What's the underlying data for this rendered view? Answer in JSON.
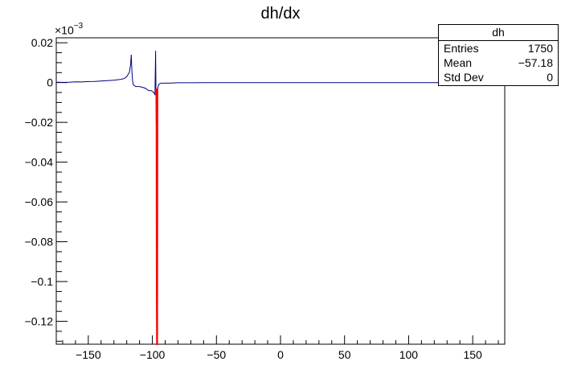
{
  "chart_data": {
    "type": "line",
    "title": "dh/dx",
    "xlabel": "",
    "ylabel": "",
    "xlim": [
      -175,
      175
    ],
    "ylim": [
      -0.1315,
      0.0225
    ],
    "y_exponent_label": "×10",
    "y_exponent_power": "−3",
    "x_ticks": [
      -150,
      -100,
      -50,
      0,
      50,
      100,
      150
    ],
    "x_tick_labels": [
      "−150",
      "−100",
      "−50",
      "0",
      "50",
      "100",
      "150"
    ],
    "y_ticks": [
      0.02,
      0,
      -0.02,
      -0.04,
      -0.06,
      -0.08,
      -0.1,
      -0.12
    ],
    "y_tick_labels": [
      "0.02",
      "0",
      "−0.02",
      "−0.04",
      "−0.06",
      "−0.08",
      "−0.1",
      "−0.12"
    ],
    "grid": false,
    "series": [
      {
        "color": "#000080",
        "x": [
          -175,
          -170,
          -165,
          -160,
          -155,
          -150,
          -145,
          -140,
          -135,
          -130,
          -125,
          -122,
          -120,
          -118,
          -117,
          -116.5,
          -116,
          -115.5,
          -115,
          -113,
          -110,
          -107,
          -105,
          -103,
          -101,
          -99,
          -98,
          -97.5,
          -97,
          -96.5,
          -96,
          -95.5,
          -95,
          -94,
          -93,
          -90,
          -85,
          -80,
          -70,
          -60,
          -50,
          -40,
          -30,
          -20,
          -10,
          0,
          20,
          50,
          100,
          150,
          175
        ],
        "y": [
          0.0002,
          0.0001,
          0.0002,
          0.0004,
          0.0003,
          0.0005,
          0.0006,
          0.0008,
          0.001,
          0.0012,
          0.0016,
          0.002,
          0.003,
          0.005,
          0.009,
          0.014,
          0.006,
          0.001,
          -0.001,
          -0.002,
          -0.002,
          -0.0025,
          -0.003,
          -0.004,
          -0.004,
          -0.005,
          -0.006,
          0.016,
          -0.02,
          -0.007,
          -0.004,
          -0.002,
          -0.001,
          -0.0005,
          -0.0003,
          -0.0003,
          -0.0002,
          -0.0001,
          -0.0001,
          -5e-05,
          0,
          0,
          0,
          0,
          0,
          0,
          0,
          0,
          0,
          0,
          0
        ]
      },
      {
        "color": "#ff0000",
        "x": [
          -96.8,
          -96.6,
          -96.4,
          -96.2,
          -96.0
        ],
        "y": [
          -0.003,
          -0.105,
          -0.1315,
          -0.1315,
          -0.003
        ]
      }
    ],
    "stats": {
      "name": "dh",
      "rows": [
        {
          "label": "Entries",
          "value": "1750"
        },
        {
          "label": "Mean",
          "value": "−57.18"
        },
        {
          "label": "Std Dev",
          "value": "0"
        }
      ]
    }
  }
}
